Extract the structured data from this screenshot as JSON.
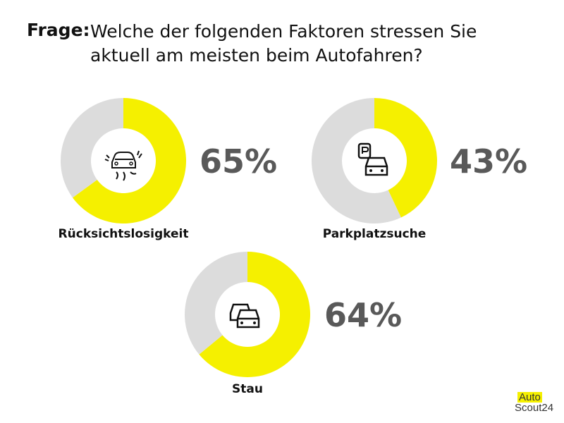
{
  "header": {
    "label": "Frage:",
    "question": "Welche der folgenden Faktoren stressen Sie aktuell am meisten beim Autofahren?"
  },
  "colors": {
    "highlight": "#f5f000",
    "rest": "#dcdcdc",
    "percent_text": "#595959"
  },
  "chart_data": [
    {
      "type": "pie",
      "label": "Rücksichtslosigkeit",
      "value": 65,
      "value_label": "65%",
      "icon": "reckless-car-icon"
    },
    {
      "type": "pie",
      "label": "Parkplatzsuche",
      "value": 43,
      "value_label": "43%",
      "icon": "parking-car-icon"
    },
    {
      "type": "pie",
      "label": "Stau",
      "value": 64,
      "value_label": "64%",
      "icon": "traffic-jam-icon"
    }
  ],
  "logo": {
    "line1": "Auto",
    "line2": "Scout24"
  }
}
